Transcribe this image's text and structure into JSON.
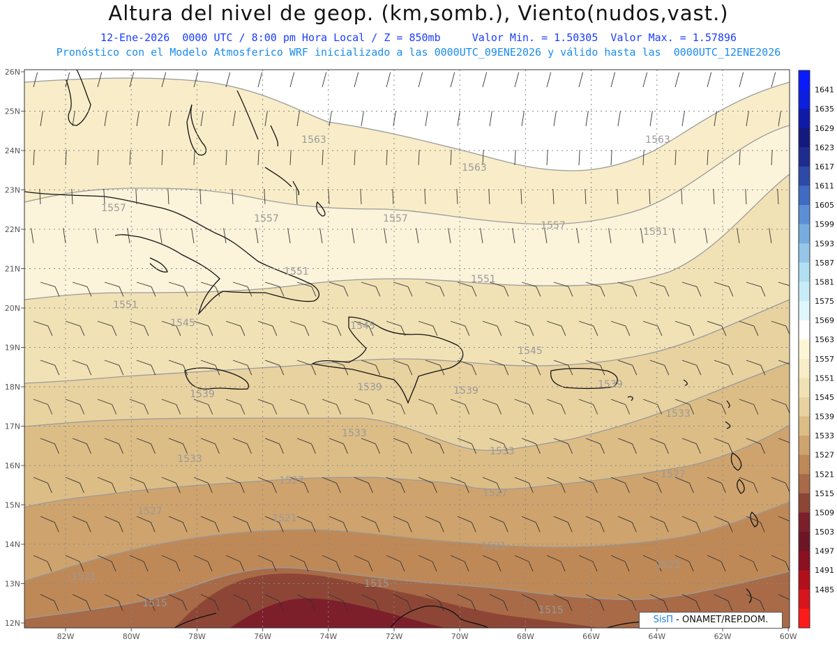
{
  "header": {
    "title": "Altura del nivel de geop. (km,somb.), Viento(nudos,vast.)",
    "line1": "12-Ene-2026  0000 UTC / 8:00 pm Hora Local / Z = 850mb     Valor Min. = 1.50305  Valor Max. = 1.57896",
    "line2": "Pronóstico con el Modelo Atmosferico WRF inicializado a las 0000UTC_09ENE2026 y válido hasta las  0000UTC_12ENE2026"
  },
  "axes": {
    "lat_labels": [
      "26N",
      "25N",
      "24N",
      "23N",
      "22N",
      "21N",
      "20N",
      "19N",
      "18N",
      "17N",
      "16N",
      "15N",
      "14N",
      "13N",
      "12N"
    ],
    "lon_labels": [
      "82W",
      "80W",
      "78W",
      "76W",
      "74W",
      "72W",
      "70W",
      "68W",
      "66W",
      "64W",
      "62W",
      "60W"
    ]
  },
  "colorbar": {
    "labels": [
      "1641",
      "1635",
      "1629",
      "1623",
      "1617",
      "1611",
      "1605",
      "1599",
      "1593",
      "1587",
      "1581",
      "1575",
      "1569",
      "1563",
      "1557",
      "1551",
      "1545",
      "1539",
      "1533",
      "1527",
      "1521",
      "1515",
      "1509",
      "1503",
      "1497",
      "1491",
      "1485"
    ],
    "colors": [
      "#0a1aff",
      "#0c1ee0",
      "#0f1aa8",
      "#14197f",
      "#1e2b8f",
      "#2d4aa8",
      "#3f6bc3",
      "#5a8fd6",
      "#77acdf",
      "#95c6ea",
      "#b1dff2",
      "#c9edf8",
      "#dff6fc",
      "#ffffff",
      "#fdf6d6",
      "#f8edc8",
      "#f1e2b6",
      "#e8d2a0",
      "#dcbd86",
      "#cfa36d",
      "#bf8957",
      "#a86a47",
      "#8d4636",
      "#7c1f2b",
      "#6e1525",
      "#8b1020",
      "#b30f1a",
      "#d8141c",
      "#ff1a1a"
    ]
  },
  "contour_labels": [
    "1563",
    "1563",
    "1563",
    "1557",
    "1557",
    "1557",
    "1557",
    "1551",
    "1551",
    "1551",
    "1551",
    "1545",
    "1545",
    "1545",
    "1539",
    "1539",
    "1539",
    "1539",
    "1533",
    "1533",
    "1533",
    "1533",
    "1527",
    "1527",
    "1527",
    "1527",
    "1521",
    "1521",
    "1521",
    "1521",
    "1515",
    "1515",
    "1515"
  ],
  "credit": {
    "brand": "SisΠ",
    "text": " - ONAMET/REP.DOM."
  }
}
